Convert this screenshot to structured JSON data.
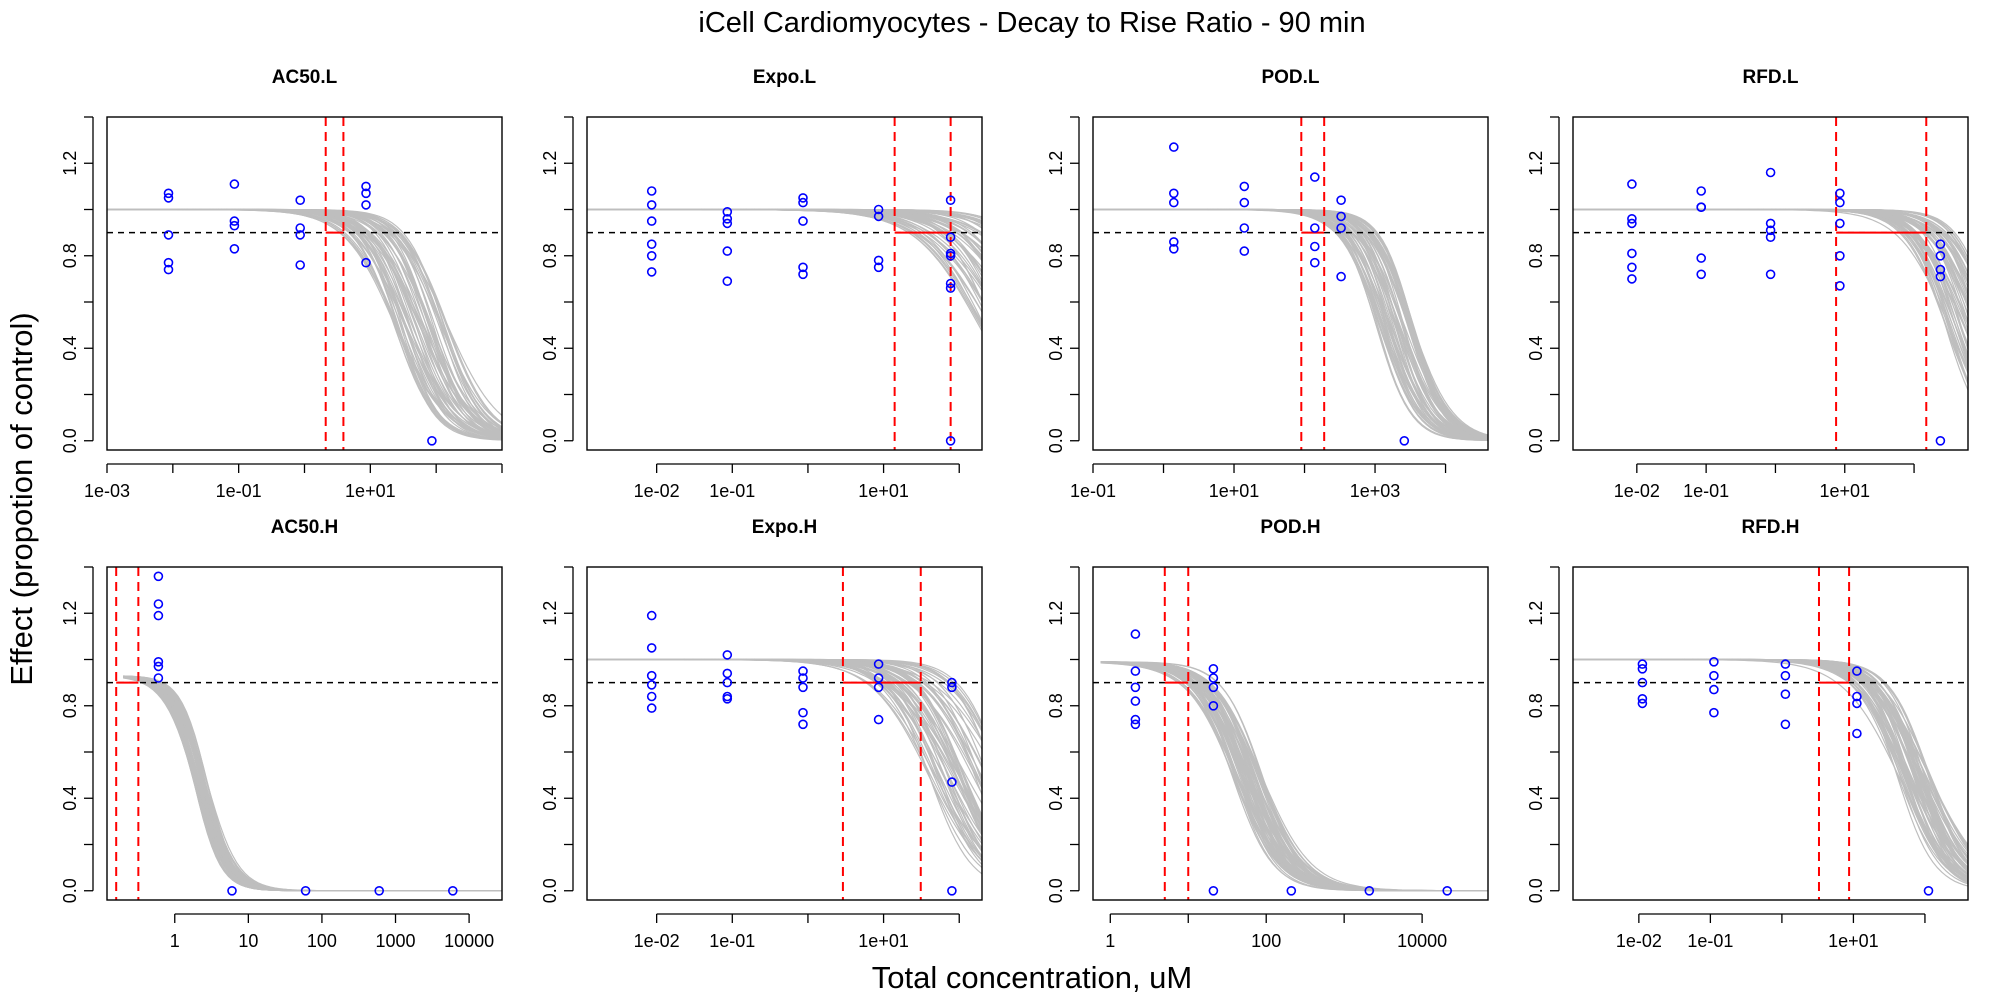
{
  "title": "iCell Cardiomyocytes -  Decay to Rise Ratio - 90 min",
  "xlabel": "Total concentration, uM",
  "ylabel": "Effect (propotion of control)",
  "colors": {
    "points": "#0000FF",
    "curves": "#BEBEBE",
    "markers": "#FF0000",
    "threshold": "#000000"
  },
  "chart_data": [
    {
      "type": "scatter",
      "title": "AC50.L",
      "xscale": "log",
      "xlim": [
        0.001,
        1000
      ],
      "ylim": [
        0,
        1.35
      ],
      "xticks": [
        0.001,
        0.1,
        10
      ],
      "xtick_labels": [
        "1e-03",
        "1e-01",
        "1e+01"
      ],
      "yticks": [
        0,
        0.4,
        0.8,
        1.2
      ],
      "ytick_labels": [
        "0.0",
        "0.4",
        "0.8",
        "1.2"
      ],
      "threshold": 0.9,
      "markers": [
        2.1,
        3.9
      ],
      "points": [
        [
          0.0086,
          1.07
        ],
        [
          0.0086,
          1.05
        ],
        [
          0.0086,
          0.89
        ],
        [
          0.0086,
          0.77
        ],
        [
          0.0086,
          0.74
        ],
        [
          0.086,
          1.11
        ],
        [
          0.086,
          0.95
        ],
        [
          0.086,
          0.93
        ],
        [
          0.086,
          0.83
        ],
        [
          0.86,
          1.04
        ],
        [
          0.86,
          0.92
        ],
        [
          0.86,
          0.89
        ],
        [
          0.86,
          0.76
        ],
        [
          8.6,
          1.1
        ],
        [
          8.6,
          1.07
        ],
        [
          8.6,
          1.02
        ],
        [
          8.6,
          0.77
        ],
        [
          86,
          0.0
        ]
      ],
      "curves": {
        "top": 1.0,
        "x50_range": [
          20,
          150
        ],
        "hill_range": [
          1.1,
          1.6
        ]
      }
    },
    {
      "type": "scatter",
      "title": "Expo.L",
      "xscale": "log",
      "xlim": [
        0.0012,
        200
      ],
      "ylim": [
        0,
        1.35
      ],
      "xticks": [
        0.01,
        0.1,
        10
      ],
      "xtick_labels": [
        "1e-02",
        "1e-01",
        "1e+01"
      ],
      "yticks": [
        0,
        0.4,
        0.8,
        1.2
      ],
      "ytick_labels": [
        "0.0",
        "0.4",
        "0.8",
        "1.2"
      ],
      "threshold": 0.9,
      "markers": [
        14,
        77
      ],
      "points": [
        [
          0.0086,
          1.08
        ],
        [
          0.0086,
          1.02
        ],
        [
          0.0086,
          0.95
        ],
        [
          0.0086,
          0.85
        ],
        [
          0.0086,
          0.8
        ],
        [
          0.0086,
          0.73
        ],
        [
          0.086,
          0.99
        ],
        [
          0.086,
          0.96
        ],
        [
          0.086,
          0.94
        ],
        [
          0.086,
          0.82
        ],
        [
          0.086,
          0.69
        ],
        [
          0.86,
          1.05
        ],
        [
          0.86,
          1.03
        ],
        [
          0.86,
          0.95
        ],
        [
          0.86,
          0.75
        ],
        [
          0.86,
          0.72
        ],
        [
          8.6,
          1.0
        ],
        [
          8.6,
          0.97
        ],
        [
          8.6,
          0.78
        ],
        [
          8.6,
          0.75
        ],
        [
          77,
          1.04
        ],
        [
          77,
          0.88
        ],
        [
          77,
          0.81
        ],
        [
          77,
          0.8
        ],
        [
          77,
          0.68
        ],
        [
          77,
          0.66
        ],
        [
          77,
          0.0
        ]
      ],
      "curves": {
        "top": 1.0,
        "x50_range": [
          180,
          3000
        ],
        "hill_range": [
          0.9,
          1.4
        ]
      }
    },
    {
      "type": "scatter",
      "title": "POD.L",
      "xscale": "log",
      "xlim": [
        0.1,
        40000
      ],
      "ylim": [
        0,
        1.35
      ],
      "xticks": [
        0.1,
        10,
        1000
      ],
      "xtick_labels": [
        "1e-01",
        "1e+01",
        "1e+03"
      ],
      "yticks": [
        0,
        0.4,
        0.8,
        1.2
      ],
      "ytick_labels": [
        "0.0",
        "0.4",
        "0.8",
        "1.2"
      ],
      "threshold": 0.9,
      "markers": [
        90,
        190
      ],
      "points": [
        [
          1.4,
          1.27
        ],
        [
          1.4,
          1.07
        ],
        [
          1.4,
          1.03
        ],
        [
          1.4,
          0.86
        ],
        [
          1.4,
          0.83
        ],
        [
          14,
          1.1
        ],
        [
          14,
          1.03
        ],
        [
          14,
          0.92
        ],
        [
          14,
          0.82
        ],
        [
          140,
          1.14
        ],
        [
          140,
          0.92
        ],
        [
          140,
          0.84
        ],
        [
          140,
          0.77
        ],
        [
          330,
          1.04
        ],
        [
          330,
          0.97
        ],
        [
          330,
          0.92
        ],
        [
          330,
          0.71
        ],
        [
          2600,
          0.0
        ]
      ],
      "curves": {
        "top": 1.0,
        "x50_range": [
          1000,
          3500
        ],
        "hill_range": [
          1.4,
          1.9
        ]
      }
    },
    {
      "type": "scatter",
      "title": "RFD.L",
      "xscale": "log",
      "xlim": [
        0.0012,
        600
      ],
      "ylim": [
        0,
        1.35
      ],
      "xticks": [
        0.01,
        0.1,
        10
      ],
      "xtick_labels": [
        "1e-02",
        "1e-01",
        "1e+01"
      ],
      "yticks": [
        0,
        0.4,
        0.8,
        1.2
      ],
      "ytick_labels": [
        "0.0",
        "0.4",
        "0.8",
        "1.2"
      ],
      "threshold": 0.9,
      "markers": [
        7.5,
        150
      ],
      "points": [
        [
          0.0085,
          1.11
        ],
        [
          0.0085,
          0.96
        ],
        [
          0.0085,
          0.94
        ],
        [
          0.0085,
          0.81
        ],
        [
          0.0085,
          0.75
        ],
        [
          0.0085,
          0.7
        ],
        [
          0.085,
          1.08
        ],
        [
          0.085,
          1.01
        ],
        [
          0.085,
          1.01
        ],
        [
          0.085,
          0.79
        ],
        [
          0.085,
          0.72
        ],
        [
          0.85,
          1.16
        ],
        [
          0.85,
          0.94
        ],
        [
          0.85,
          0.91
        ],
        [
          0.85,
          0.88
        ],
        [
          0.85,
          0.72
        ],
        [
          8.5,
          1.07
        ],
        [
          8.5,
          1.03
        ],
        [
          8.5,
          0.94
        ],
        [
          8.5,
          0.8
        ],
        [
          8.5,
          0.67
        ],
        [
          240,
          0.85
        ],
        [
          240,
          0.8
        ],
        [
          240,
          0.74
        ],
        [
          240,
          0.71
        ],
        [
          240,
          0.0
        ]
      ],
      "curves": {
        "top": 1.0,
        "x50_range": [
          250,
          1500
        ],
        "hill_range": [
          1.2,
          1.8
        ]
      }
    },
    {
      "type": "scatter",
      "title": "AC50.H",
      "xscale": "log",
      "xlim": [
        0.12,
        28000
      ],
      "ylim": [
        0,
        1.35
      ],
      "xticks": [
        1,
        10,
        100,
        1000,
        10000
      ],
      "xtick_labels": [
        "1",
        "10",
        "100",
        "1000",
        "10000"
      ],
      "yticks": [
        0,
        0.4,
        0.8,
        1.2
      ],
      "ytick_labels": [
        "0.0",
        "0.4",
        "0.8",
        "1.2"
      ],
      "threshold": 0.9,
      "markers": [
        0.16,
        0.32
      ],
      "points": [
        [
          0.6,
          1.36
        ],
        [
          0.6,
          1.24
        ],
        [
          0.6,
          1.19
        ],
        [
          0.6,
          0.99
        ],
        [
          0.6,
          0.97
        ],
        [
          0.6,
          0.92
        ],
        [
          6,
          0.0
        ],
        [
          60,
          0.0
        ],
        [
          600,
          0.0
        ],
        [
          6000,
          0.0
        ]
      ],
      "curves": {
        "top": 0.93,
        "x0": 0.2,
        "x50_range": [
          1.8,
          2.8
        ],
        "hill_range": [
          2.0,
          2.5
        ]
      }
    },
    {
      "type": "scatter",
      "title": "Expo.H",
      "xscale": "log",
      "xlim": [
        0.0012,
        200
      ],
      "ylim": [
        0,
        1.35
      ],
      "xticks": [
        0.01,
        0.1,
        10
      ],
      "xtick_labels": [
        "1e-02",
        "1e-01",
        "1e+01"
      ],
      "yticks": [
        0,
        0.4,
        0.8,
        1.2
      ],
      "ytick_labels": [
        "0.0",
        "0.4",
        "0.8",
        "1.2"
      ],
      "threshold": 0.9,
      "markers": [
        2.9,
        31
      ],
      "points": [
        [
          0.0086,
          1.19
        ],
        [
          0.0086,
          1.05
        ],
        [
          0.0086,
          0.93
        ],
        [
          0.0086,
          0.89
        ],
        [
          0.0086,
          0.84
        ],
        [
          0.0086,
          0.79
        ],
        [
          0.086,
          1.02
        ],
        [
          0.086,
          0.94
        ],
        [
          0.086,
          0.9
        ],
        [
          0.086,
          0.84
        ],
        [
          0.086,
          0.83
        ],
        [
          0.86,
          0.95
        ],
        [
          0.86,
          0.92
        ],
        [
          0.86,
          0.88
        ],
        [
          0.86,
          0.77
        ],
        [
          0.86,
          0.72
        ],
        [
          8.6,
          0.98
        ],
        [
          8.6,
          0.92
        ],
        [
          8.6,
          0.88
        ],
        [
          8.6,
          0.74
        ],
        [
          80,
          0.9
        ],
        [
          80,
          0.88
        ],
        [
          80,
          0.47
        ],
        [
          80,
          0.0
        ]
      ],
      "curves": {
        "top": 1.0,
        "x50_range": [
          35,
          400
        ],
        "hill_range": [
          1.0,
          1.6
        ]
      }
    },
    {
      "type": "scatter",
      "title": "POD.H",
      "xscale": "log",
      "xlim": [
        0.6,
        70000
      ],
      "ylim": [
        0,
        1.35
      ],
      "xticks": [
        1,
        100,
        10000
      ],
      "xtick_labels": [
        "1",
        "100",
        "10000"
      ],
      "yticks": [
        0,
        0.4,
        0.8,
        1.2
      ],
      "ytick_labels": [
        "0.0",
        "0.4",
        "0.8",
        "1.2"
      ],
      "threshold": 0.9,
      "markers": [
        5,
        10
      ],
      "points": [
        [
          2.1,
          1.11
        ],
        [
          2.1,
          0.95
        ],
        [
          2.1,
          0.88
        ],
        [
          2.1,
          0.82
        ],
        [
          2.1,
          0.74
        ],
        [
          2.1,
          0.72
        ],
        [
          21,
          0.96
        ],
        [
          21,
          0.92
        ],
        [
          21,
          0.88
        ],
        [
          21,
          0.8
        ],
        [
          21,
          0.0
        ],
        [
          210,
          0.0
        ],
        [
          2100,
          0.0
        ],
        [
          21000,
          0.0
        ]
      ],
      "curves": {
        "top": 0.99,
        "x0": 0.75,
        "x50_range": [
          35,
          90
        ],
        "hill_range": [
          1.3,
          1.8
        ]
      }
    },
    {
      "type": "scatter",
      "title": "RFD.H",
      "xscale": "log",
      "xlim": [
        0.0012,
        400
      ],
      "ylim": [
        0,
        1.35
      ],
      "xticks": [
        0.01,
        0.1,
        10
      ],
      "xtick_labels": [
        "1e-02",
        "1e-01",
        "1e+01"
      ],
      "yticks": [
        0,
        0.4,
        0.8,
        1.2
      ],
      "ytick_labels": [
        "0.0",
        "0.4",
        "0.8",
        "1.2"
      ],
      "threshold": 0.9,
      "markers": [
        3.3,
        8.7
      ],
      "points": [
        [
          0.0112,
          0.98
        ],
        [
          0.0112,
          0.96
        ],
        [
          0.0112,
          0.9
        ],
        [
          0.0112,
          0.83
        ],
        [
          0.0112,
          0.81
        ],
        [
          0.112,
          0.99
        ],
        [
          0.112,
          0.93
        ],
        [
          0.112,
          0.87
        ],
        [
          0.112,
          0.77
        ],
        [
          1.12,
          0.98
        ],
        [
          1.12,
          0.93
        ],
        [
          1.12,
          0.85
        ],
        [
          1.12,
          0.72
        ],
        [
          11.2,
          0.95
        ],
        [
          11.2,
          0.84
        ],
        [
          11.2,
          0.81
        ],
        [
          11.2,
          0.68
        ],
        [
          112,
          0.0
        ]
      ],
      "curves": {
        "top": 1.0,
        "x50_range": [
          40,
          120
        ],
        "hill_range": [
          1.1,
          1.7
        ]
      }
    }
  ]
}
